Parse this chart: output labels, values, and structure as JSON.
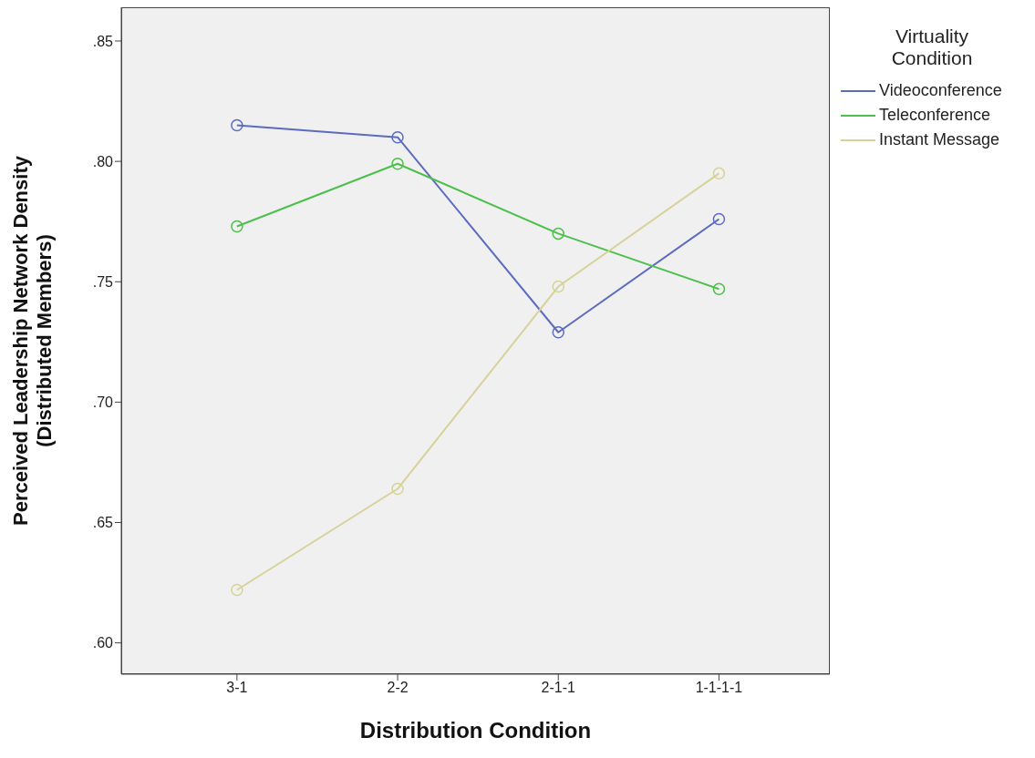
{
  "chart_data": {
    "type": "line",
    "xlabel": "Distribution Condition",
    "ylabel": "Perceived Leadership Network Density (Distributed Members)",
    "legend_title": "Virtuality Condition",
    "categories": [
      "3-1",
      "2-2",
      "2-1-1",
      "1-1-1-1"
    ],
    "series": [
      {
        "name": "Videoconference",
        "color": "#5c6bc0",
        "values": [
          0.815,
          0.81,
          0.729,
          0.776
        ]
      },
      {
        "name": "Teleconference",
        "color": "#4cbf4c",
        "values": [
          0.773,
          0.799,
          0.77,
          0.747
        ]
      },
      {
        "name": "Instant Message",
        "color": "#d6d29a",
        "values": [
          0.622,
          0.664,
          0.748,
          0.795
        ]
      }
    ],
    "ylim": [
      0.587,
      0.864
    ],
    "yticks": [
      {
        "value": 0.6,
        "label": ".60"
      },
      {
        "value": 0.65,
        "label": ".65"
      },
      {
        "value": 0.7,
        "label": ".70"
      },
      {
        "value": 0.75,
        "label": ".75"
      },
      {
        "value": 0.8,
        "label": ".80"
      },
      {
        "value": 0.85,
        "label": ".85"
      }
    ],
    "grid": false,
    "legend": "top right",
    "marker": "circle",
    "line_style": "solid"
  }
}
